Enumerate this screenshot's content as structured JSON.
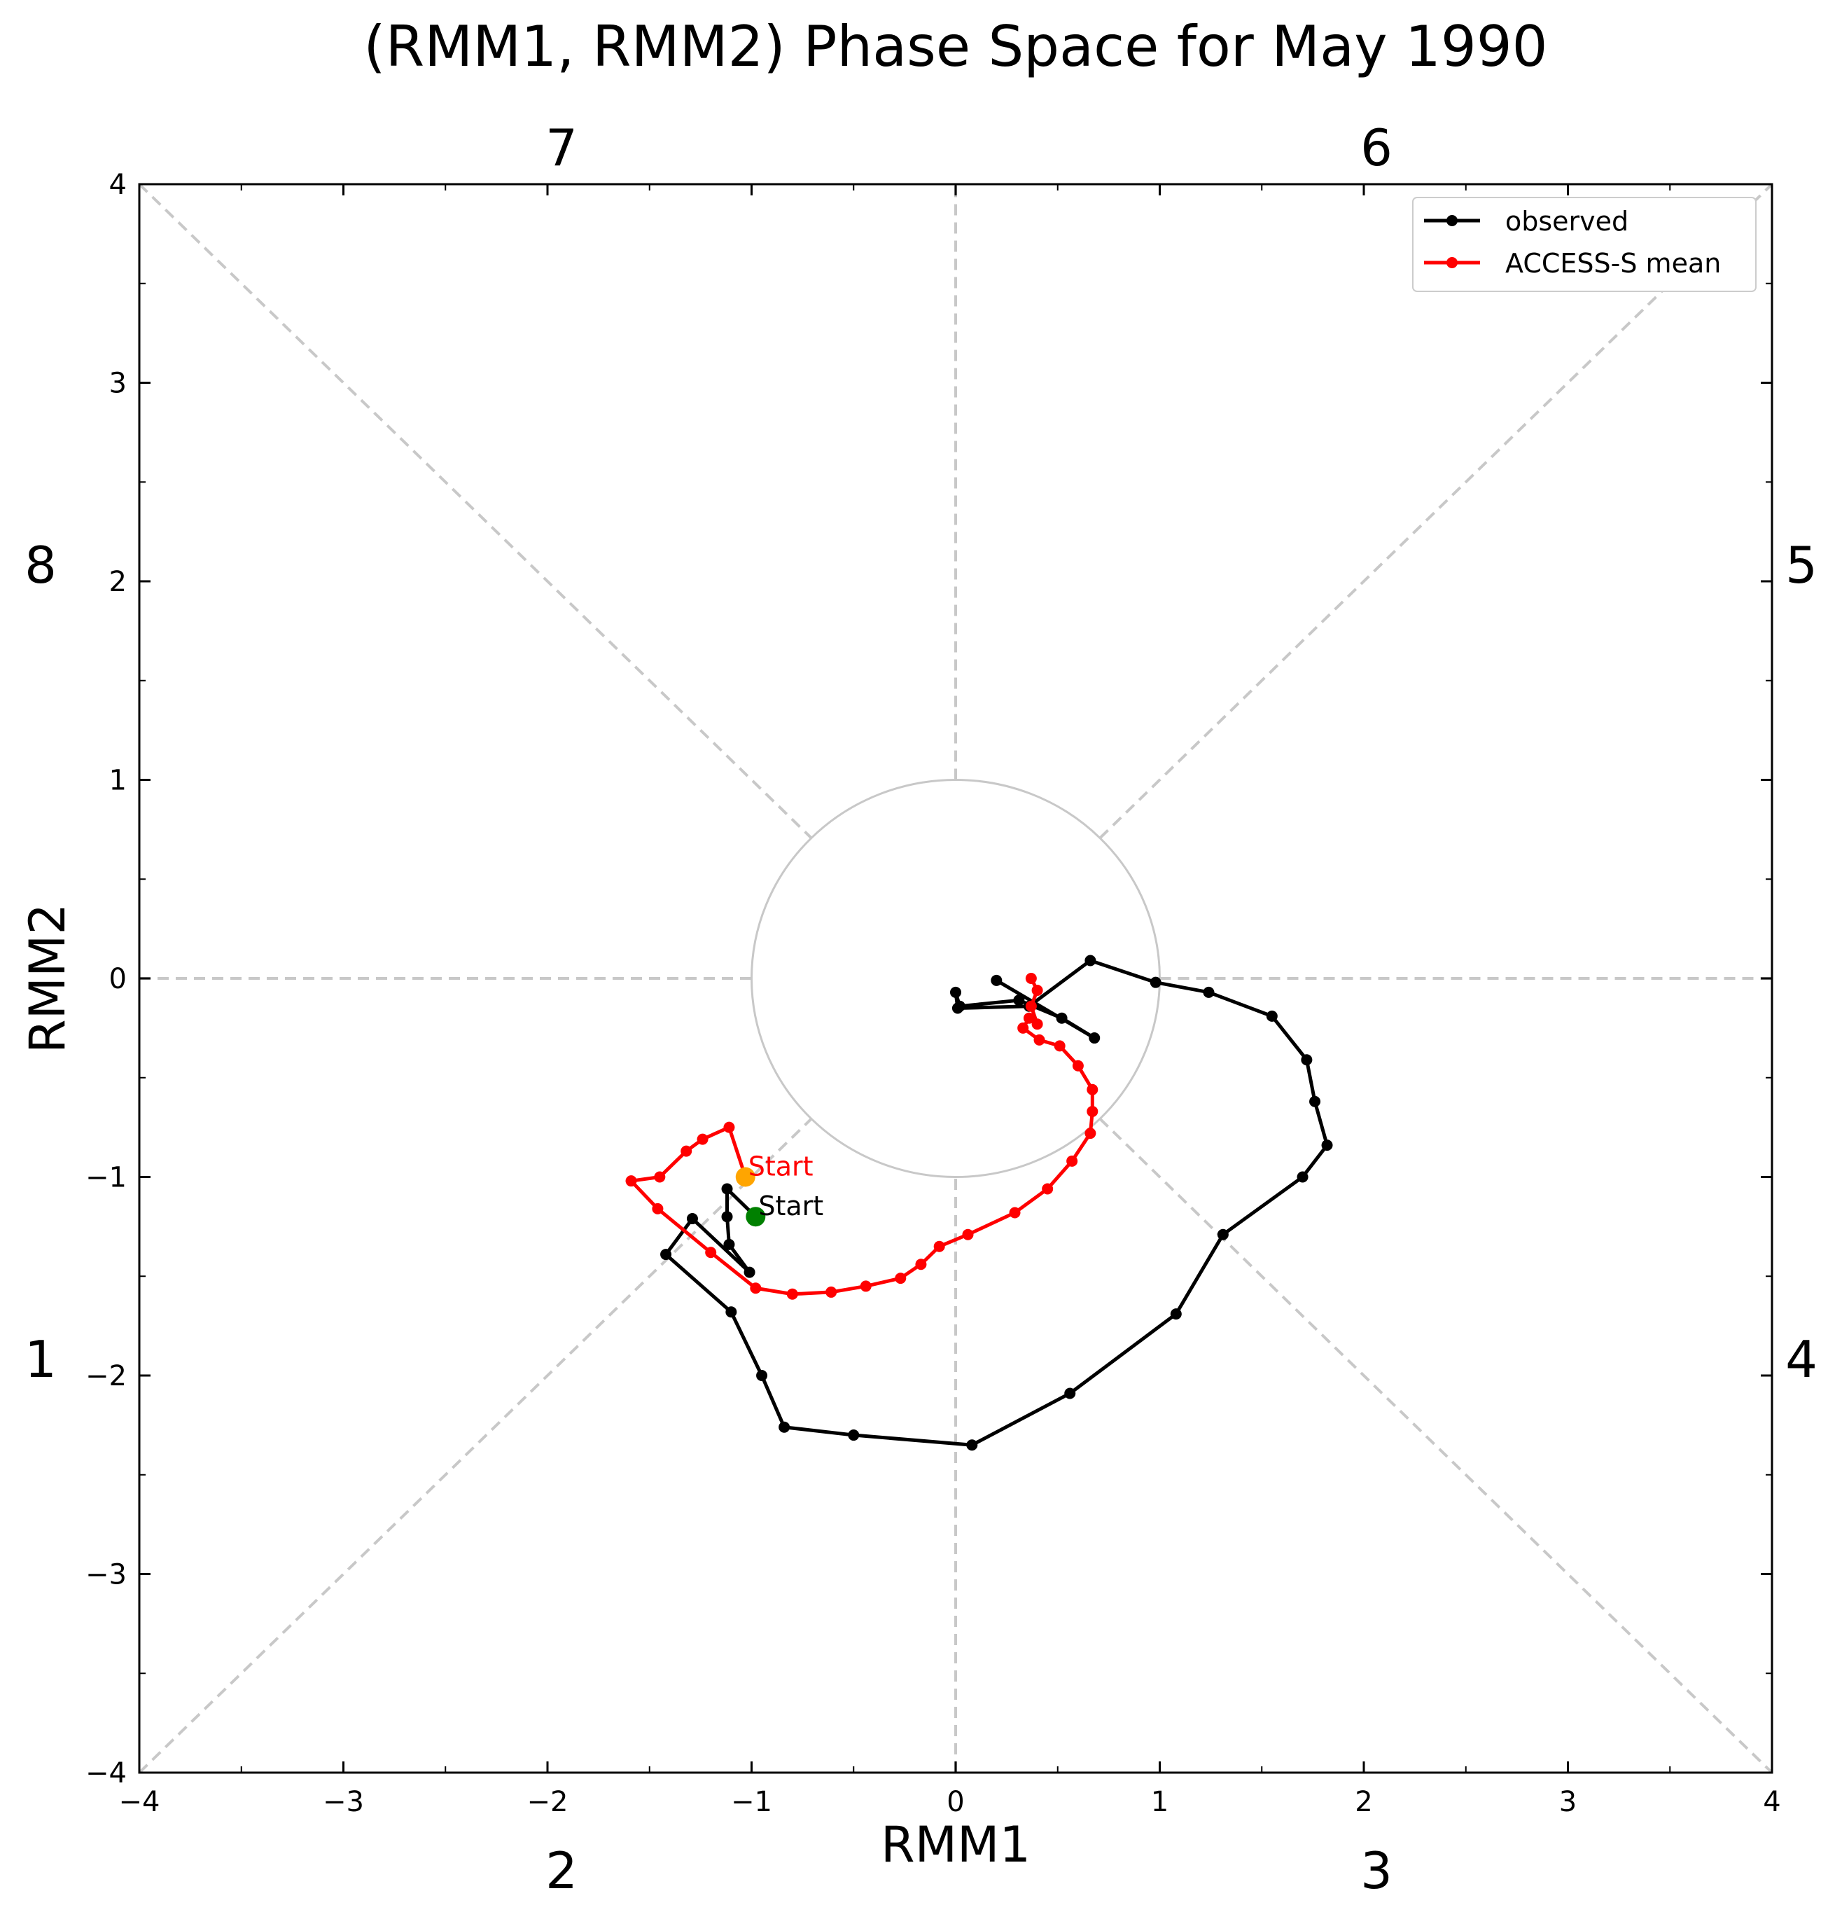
{
  "chart_data": {
    "type": "line",
    "title": "(RMM1, RMM2) Phase Space for May 1990",
    "xlabel": "RMM1",
    "ylabel": "RMM2",
    "xlim": [
      -4,
      4
    ],
    "ylim": [
      -4,
      4
    ],
    "xticks": [
      "−4",
      "−3",
      "−2",
      "−1",
      "0",
      "1",
      "2",
      "3",
      "4"
    ],
    "yticks": [
      "−4",
      "−3",
      "−2",
      "−1",
      "0",
      "1",
      "2",
      "3",
      "4"
    ],
    "grid": false,
    "legend_position": "top-right",
    "phase_labels": {
      "top": [
        "7",
        "6"
      ],
      "bottom": [
        "2",
        "3"
      ],
      "left": [
        "8",
        "1"
      ],
      "right": [
        "5",
        "4"
      ]
    },
    "unit_circle_radius": 1,
    "colors": {
      "observed": "#000000",
      "forecast": "#ff0000",
      "observed_start": "#008000",
      "forecast_start": "#ffa500",
      "guides": "#c8c8c8"
    },
    "series": [
      {
        "name": "observed",
        "color": "#000000",
        "points": [
          [
            -0.98,
            -1.2
          ],
          [
            -1.12,
            -1.06
          ],
          [
            -1.12,
            -1.2
          ],
          [
            -1.11,
            -1.34
          ],
          [
            -1.01,
            -1.48
          ],
          [
            -1.29,
            -1.21
          ],
          [
            -1.42,
            -1.39
          ],
          [
            -1.1,
            -1.68
          ],
          [
            -0.95,
            -2.0
          ],
          [
            -0.84,
            -2.26
          ],
          [
            -0.5,
            -2.3
          ],
          [
            0.08,
            -2.35
          ],
          [
            0.56,
            -2.09
          ],
          [
            1.08,
            -1.69
          ],
          [
            1.31,
            -1.29
          ],
          [
            1.7,
            -1.0
          ],
          [
            1.82,
            -0.84
          ],
          [
            1.76,
            -0.62
          ],
          [
            1.72,
            -0.41
          ],
          [
            1.55,
            -0.19
          ],
          [
            1.24,
            -0.07
          ],
          [
            0.98,
            -0.02
          ],
          [
            0.66,
            0.09
          ],
          [
            0.36,
            -0.14
          ],
          [
            0.01,
            -0.15
          ],
          [
            0.0,
            -0.07
          ],
          [
            0.02,
            -0.14
          ],
          [
            0.31,
            -0.11
          ],
          [
            0.52,
            -0.2
          ],
          [
            0.68,
            -0.3
          ],
          [
            0.2,
            -0.01
          ]
        ]
      },
      {
        "name": "ACCESS-S mean",
        "color": "#ff0000",
        "points": [
          [
            -1.03,
            -1.0
          ],
          [
            -1.11,
            -0.75
          ],
          [
            -1.24,
            -0.81
          ],
          [
            -1.32,
            -0.87
          ],
          [
            -1.45,
            -1.0
          ],
          [
            -1.59,
            -1.02
          ],
          [
            -1.46,
            -1.16
          ],
          [
            -1.2,
            -1.38
          ],
          [
            -0.98,
            -1.56
          ],
          [
            -0.8,
            -1.59
          ],
          [
            -0.61,
            -1.58
          ],
          [
            -0.44,
            -1.55
          ],
          [
            -0.27,
            -1.51
          ],
          [
            -0.17,
            -1.44
          ],
          [
            -0.08,
            -1.35
          ],
          [
            0.06,
            -1.29
          ],
          [
            0.29,
            -1.18
          ],
          [
            0.45,
            -1.06
          ],
          [
            0.57,
            -0.92
          ],
          [
            0.66,
            -0.78
          ],
          [
            0.67,
            -0.67
          ],
          [
            0.67,
            -0.56
          ],
          [
            0.6,
            -0.44
          ],
          [
            0.51,
            -0.34
          ],
          [
            0.41,
            -0.31
          ],
          [
            0.33,
            -0.25
          ],
          [
            0.36,
            -0.2
          ],
          [
            0.4,
            -0.23
          ],
          [
            0.37,
            -0.14
          ],
          [
            0.4,
            -0.06
          ],
          [
            0.37,
            0.0
          ]
        ]
      }
    ],
    "start_markers": [
      {
        "series": "observed",
        "label": "Start",
        "x": -0.98,
        "y": -1.2,
        "color": "#008000",
        "label_color": "#000000"
      },
      {
        "series": "ACCESS-S mean",
        "label": "Start",
        "x": -1.03,
        "y": -1.0,
        "color": "#ffa500",
        "label_color": "#ff0000"
      }
    ]
  }
}
